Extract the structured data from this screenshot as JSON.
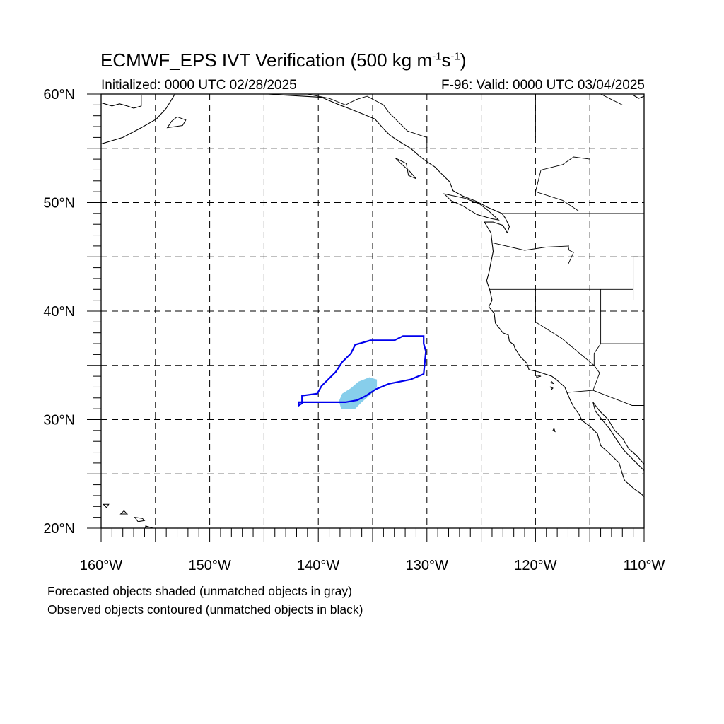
{
  "header": {
    "title_main": "ECMWF_EPS IVT Verification (500 kg m",
    "title_sup1": "-1",
    "title_mid": "s",
    "title_sup2": "-1",
    "title_end": ")",
    "initialized": "Initialized: 0000 UTC 02/28/2025",
    "valid": "F-96: Valid: 0000 UTC 03/04/2025"
  },
  "axes": {
    "lon_labels": [
      "160°W",
      "150°W",
      "140°W",
      "130°W",
      "120°W",
      "110°W"
    ],
    "lat_labels": [
      "60°N",
      "50°N",
      "40°N",
      "30°N",
      "20°N"
    ],
    "lon_range": [
      -160,
      -110
    ],
    "lat_range": [
      20,
      60
    ],
    "grid_spacing_deg": 5,
    "grid": true
  },
  "footer": {
    "line1": "Forecasted objects shaded (unmatched objects in gray)",
    "line2": "Observed objects contoured (unmatched objects in black)"
  },
  "colors": {
    "forecast_matched": "#87ceeb",
    "observed_matched": "#0000ee",
    "coast": "#000000",
    "grid": "#000000"
  },
  "objects": {
    "forecast": [
      {
        "matched": true,
        "outline": [
          [
            -137.9,
            31.0
          ],
          [
            -136.6,
            31.0
          ],
          [
            -136.0,
            31.6
          ],
          [
            -135.2,
            32.3
          ],
          [
            -134.6,
            33.0
          ],
          [
            -134.6,
            33.7
          ],
          [
            -135.3,
            33.9
          ],
          [
            -136.3,
            33.5
          ],
          [
            -137.0,
            32.9
          ],
          [
            -137.8,
            32.4
          ],
          [
            -138.1,
            31.7
          ]
        ]
      }
    ],
    "observed": [
      {
        "matched": true,
        "outline": [
          [
            -141.8,
            31.3
          ],
          [
            -141.5,
            31.5
          ],
          [
            -141.5,
            32.2
          ],
          [
            -140.1,
            32.4
          ],
          [
            -139.7,
            33.1
          ],
          [
            -139.0,
            33.8
          ],
          [
            -138.4,
            34.4
          ],
          [
            -137.8,
            35.3
          ],
          [
            -137.0,
            36.1
          ],
          [
            -136.6,
            36.9
          ],
          [
            -135.2,
            37.3
          ],
          [
            -133.0,
            37.3
          ],
          [
            -132.2,
            37.7
          ],
          [
            -130.3,
            37.7
          ],
          [
            -130.3,
            37.0
          ],
          [
            -130.1,
            36.3
          ],
          [
            -130.2,
            35.2
          ],
          [
            -130.3,
            34.2
          ],
          [
            -131.5,
            33.7
          ],
          [
            -133.5,
            33.3
          ],
          [
            -134.7,
            32.8
          ],
          [
            -135.6,
            32.2
          ],
          [
            -136.4,
            31.8
          ],
          [
            -137.5,
            31.6
          ],
          [
            -139.5,
            31.6
          ],
          [
            -141.8,
            31.6
          ]
        ]
      }
    ]
  },
  "geography": {
    "coastlines": [
      [
        [
          -160,
          55.4
        ],
        [
          -158.0,
          56.0
        ],
        [
          -156.3,
          56.9
        ],
        [
          -154.9,
          57.7
        ],
        [
          -154.0,
          58.7
        ],
        [
          -153.5,
          59.5
        ],
        [
          -153.2,
          60.0
        ]
      ],
      [
        [
          -160,
          59.2
        ],
        [
          -159.0,
          58.9
        ],
        [
          -158.3,
          59.1
        ],
        [
          -157.6,
          58.9
        ],
        [
          -157.0,
          58.7
        ],
        [
          -156.3,
          58.9
        ],
        [
          -156.3,
          59.9
        ]
      ],
      [
        [
          -146.0,
          60.0
        ],
        [
          -144.6,
          60.0
        ],
        [
          -143.2,
          59.9
        ],
        [
          -141.4,
          59.8
        ],
        [
          -139.7,
          59.7
        ],
        [
          -138.3,
          59.1
        ],
        [
          -137.0,
          58.6
        ],
        [
          -136.0,
          58.2
        ],
        [
          -134.8,
          57.7
        ],
        [
          -134.0,
          56.8
        ],
        [
          -133.4,
          56.2
        ],
        [
          -132.5,
          55.6
        ],
        [
          -131.5,
          55.0
        ],
        [
          -130.7,
          54.3
        ],
        [
          -130.2,
          53.9
        ],
        [
          -129.3,
          53.3
        ],
        [
          -128.6,
          52.6
        ],
        [
          -127.9,
          51.9
        ],
        [
          -127.6,
          51.1
        ],
        [
          -126.7,
          50.6
        ],
        [
          -125.4,
          50.1
        ],
        [
          -124.5,
          49.6
        ],
        [
          -123.8,
          49.3
        ],
        [
          -123.1,
          49.0
        ],
        [
          -122.8,
          48.6
        ],
        [
          -122.4,
          47.8
        ],
        [
          -122.6,
          47.2
        ],
        [
          -123.0,
          47.9
        ],
        [
          -123.9,
          48.2
        ],
        [
          -124.7,
          48.2
        ],
        [
          -124.1,
          47.2
        ],
        [
          -124.0,
          46.3
        ],
        [
          -123.9,
          45.5
        ],
        [
          -124.1,
          44.5
        ],
        [
          -124.3,
          43.5
        ],
        [
          -124.5,
          42.8
        ],
        [
          -124.2,
          41.9
        ],
        [
          -124.0,
          41.0
        ],
        [
          -124.3,
          40.4
        ],
        [
          -123.8,
          39.8
        ],
        [
          -123.7,
          38.9
        ],
        [
          -123.0,
          38.0
        ],
        [
          -122.5,
          37.8
        ],
        [
          -122.4,
          37.2
        ],
        [
          -122.0,
          36.9
        ],
        [
          -121.9,
          36.6
        ],
        [
          -121.4,
          35.8
        ],
        [
          -120.8,
          35.2
        ],
        [
          -120.6,
          34.6
        ],
        [
          -119.7,
          34.4
        ],
        [
          -118.5,
          34.0
        ],
        [
          -118.1,
          33.7
        ],
        [
          -117.3,
          33.0
        ],
        [
          -117.1,
          32.5
        ],
        [
          -116.8,
          31.8
        ],
        [
          -116.5,
          31.2
        ],
        [
          -116.0,
          30.5
        ],
        [
          -115.7,
          29.9
        ],
        [
          -115.0,
          29.4
        ],
        [
          -114.3,
          28.7
        ],
        [
          -114.1,
          28.0
        ],
        [
          -114.0,
          27.6
        ],
        [
          -113.2,
          26.9
        ],
        [
          -112.3,
          26.0
        ],
        [
          -112.0,
          25.0
        ],
        [
          -111.8,
          24.4
        ],
        [
          -110.9,
          23.6
        ],
        [
          -110.3,
          23.2
        ],
        [
          -110.0,
          22.9
        ]
      ],
      [
        [
          -110.0,
          25.9
        ],
        [
          -110.7,
          26.7
        ],
        [
          -111.4,
          27.3
        ],
        [
          -112.0,
          28.3
        ],
        [
          -112.7,
          29.0
        ],
        [
          -113.3,
          30.0
        ],
        [
          -114.1,
          30.8
        ],
        [
          -114.7,
          31.6
        ],
        [
          -114.5,
          30.8
        ],
        [
          -113.8,
          29.9
        ],
        [
          -113.2,
          29.2
        ],
        [
          -112.5,
          28.1
        ],
        [
          -111.8,
          27.1
        ],
        [
          -110.9,
          26.2
        ],
        [
          -110.0,
          25.3
        ]
      ],
      [
        [
          -110.0,
          59.8
        ],
        [
          -110.5,
          59.6
        ],
        [
          -111.0,
          59.9
        ]
      ]
    ],
    "islands": [
      [
        [
          -155.9,
          20.2
        ],
        [
          -155.2,
          20.0
        ],
        [
          -155.0,
          19.6
        ],
        [
          -155.6,
          19.2
        ],
        [
          -156.0,
          19.6
        ]
      ],
      [
        [
          -156.9,
          21.0
        ],
        [
          -156.2,
          20.9
        ],
        [
          -156.0,
          20.7
        ],
        [
          -156.6,
          20.6
        ]
      ],
      [
        [
          -157.9,
          21.6
        ],
        [
          -157.6,
          21.3
        ],
        [
          -158.2,
          21.3
        ]
      ],
      [
        [
          -159.8,
          22.2
        ],
        [
          -159.3,
          22.2
        ],
        [
          -159.5,
          21.9
        ]
      ],
      [
        [
          -153.0,
          57.9
        ],
        [
          -152.2,
          57.6
        ],
        [
          -152.5,
          57.1
        ],
        [
          -153.9,
          56.9
        ],
        [
          -153.5,
          57.5
        ]
      ],
      [
        [
          -132.9,
          54.1
        ],
        [
          -131.9,
          53.6
        ],
        [
          -131.7,
          52.5
        ],
        [
          -131.0,
          52.2
        ],
        [
          -131.6,
          52.9
        ],
        [
          -132.4,
          53.6
        ]
      ],
      [
        [
          -128.4,
          50.8
        ],
        [
          -126.5,
          50.4
        ],
        [
          -125.2,
          49.9
        ],
        [
          -124.4,
          49.3
        ],
        [
          -123.4,
          48.4
        ],
        [
          -124.0,
          48.5
        ],
        [
          -125.4,
          48.9
        ],
        [
          -126.7,
          49.7
        ],
        [
          -127.8,
          50.2
        ]
      ],
      [
        [
          -119.9,
          34.1
        ],
        [
          -119.5,
          34.0
        ],
        [
          -119.9,
          33.9
        ]
      ],
      [
        [
          -118.6,
          33.4
        ],
        [
          -118.3,
          33.3
        ],
        [
          -118.5,
          33.5
        ]
      ],
      [
        [
          -118.4,
          32.9
        ],
        [
          -118.6,
          33.0
        ],
        [
          -118.5,
          32.8
        ]
      ],
      [
        [
          -118.3,
          29.2
        ],
        [
          -118.2,
          28.9
        ],
        [
          -118.4,
          29.0
        ]
      ]
    ],
    "borders": [
      [
        [
          -141.0,
          60.0
        ],
        [
          -139.0,
          59.6
        ],
        [
          -137.5,
          59.0
        ],
        [
          -136.5,
          59.5
        ],
        [
          -135.5,
          59.8
        ],
        [
          -134.0,
          59.0
        ],
        [
          -133.5,
          58.3
        ],
        [
          -131.8,
          56.6
        ],
        [
          -130.0,
          56.0
        ],
        [
          -130.0,
          55.0
        ]
      ],
      [
        [
          -123.1,
          49.0
        ],
        [
          -110.0,
          49.0
        ]
      ],
      [
        [
          -124.0,
          46.3
        ],
        [
          -121.0,
          45.6
        ],
        [
          -119.0,
          45.9
        ],
        [
          -116.9,
          46.0
        ]
      ],
      [
        [
          -117.0,
          49.0
        ],
        [
          -117.0,
          46.0
        ],
        [
          -116.9,
          45.6
        ],
        [
          -116.5,
          45.4
        ],
        [
          -117.0,
          44.3
        ],
        [
          -117.0,
          42.0
        ]
      ],
      [
        [
          -124.2,
          42.0
        ],
        [
          -111.0,
          42.0
        ]
      ],
      [
        [
          -120.0,
          42.0
        ],
        [
          -120.0,
          39.0
        ],
        [
          -117.6,
          37.5
        ],
        [
          -114.6,
          35.0
        ]
      ],
      [
        [
          -114.0,
          42.0
        ],
        [
          -114.0,
          37.0
        ],
        [
          -114.6,
          36.1
        ],
        [
          -114.6,
          35.0
        ],
        [
          -114.1,
          34.3
        ],
        [
          -114.7,
          32.7
        ]
      ],
      [
        [
          -117.1,
          32.5
        ],
        [
          -114.7,
          32.7
        ],
        [
          -111.1,
          31.3
        ],
        [
          -110.0,
          31.3
        ]
      ],
      [
        [
          -114.0,
          37.0
        ],
        [
          -110.0,
          37.0
        ]
      ],
      [
        [
          -111.0,
          45.0
        ],
        [
          -110.0,
          45.0
        ]
      ],
      [
        [
          -111.0,
          45.0
        ],
        [
          -111.0,
          41.0
        ],
        [
          -110.0,
          41.0
        ]
      ],
      [
        [
          -120.0,
          56.0
        ],
        [
          -120.0,
          60.0
        ]
      ],
      [
        [
          -115.0,
          54.0
        ],
        [
          -116.5,
          54.2
        ],
        [
          -117.5,
          53.5
        ],
        [
          -119.5,
          53.0
        ],
        [
          -120.0,
          51.0
        ],
        [
          -117.5,
          50.2
        ],
        [
          -116.0,
          49.2
        ]
      ],
      [
        [
          -112.0,
          59.0
        ],
        [
          -113.0,
          59.5
        ],
        [
          -114.0,
          60.0
        ]
      ]
    ]
  }
}
